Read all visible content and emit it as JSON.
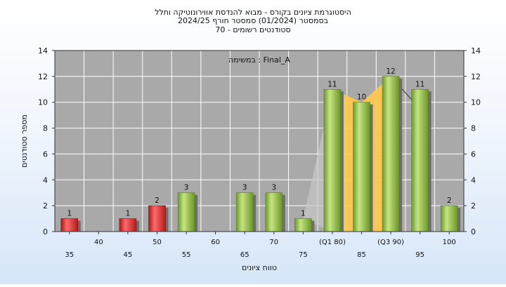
{
  "chart_data": {
    "type": "bar",
    "title_lines": [
      "היסטוגרמת ציונים בקורס - מבוא להנדסת אווירונוטיקה וחלל",
      "בסמסטר  (01/2024)  סמסטר חורף 2024/25",
      "סטודנטים רשומים - 70"
    ],
    "annotation": "במשימה : Final_A",
    "xlabel": "טווח ציונים",
    "ylabel": "מספר סטודנטים",
    "ylim": [
      0,
      14
    ],
    "yticks": [
      0,
      2,
      4,
      6,
      8,
      10,
      12,
      14
    ],
    "grid": true,
    "categories": [
      "35",
      "40",
      "45",
      "50",
      "55",
      "60",
      "65",
      "70",
      "75",
      "(Q1 80)",
      "85",
      "(Q3 90)",
      "95",
      "100"
    ],
    "values": [
      1,
      0,
      1,
      2,
      3,
      0,
      3,
      3,
      1,
      11,
      10,
      12,
      11,
      2
    ],
    "bar_colors": [
      "#e23636",
      "#e23636",
      "#e23636",
      "#e23636",
      "#8cc043",
      "#8cc043",
      "#8cc043",
      "#8cc043",
      "#8cc043",
      "#8cc043",
      "#8cc043",
      "#8cc043",
      "#8cc043",
      "#8cc043"
    ],
    "iqr_band": {
      "from": "(Q1 80)",
      "to": "(Q3 90)",
      "color": "#ffc94a"
    },
    "background_color": "#a9a9a9",
    "grid_color": "#ffffff"
  }
}
